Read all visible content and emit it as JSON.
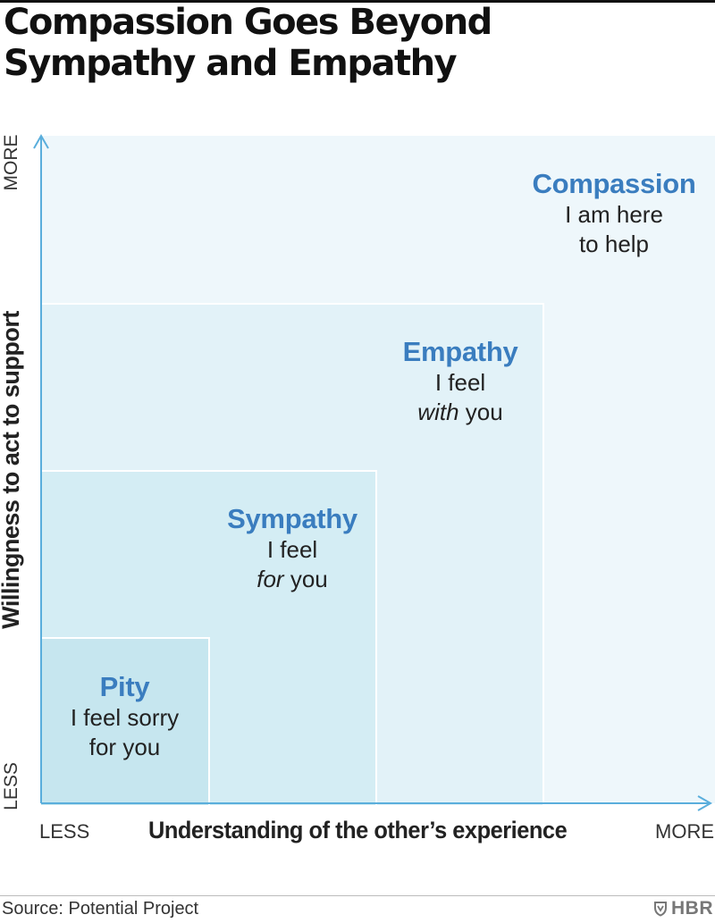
{
  "title": {
    "line1": "Compassion Goes Beyond",
    "line2": "Sympathy and Empathy"
  },
  "levels": [
    {
      "id": "pity",
      "name": "Pity",
      "desc_line1": "I feel sorry",
      "desc_line2_pre": "",
      "desc_line2_em": "",
      "desc_line2_post": "for you",
      "understanding": 1,
      "willingness": 1
    },
    {
      "id": "sympathy",
      "name": "Sympathy",
      "desc_line1": "I feel",
      "desc_line2_pre": "",
      "desc_line2_em": "for",
      "desc_line2_post": " you",
      "understanding": 2,
      "willingness": 2
    },
    {
      "id": "empathy",
      "name": "Empathy",
      "desc_line1": "I feel",
      "desc_line2_pre": "",
      "desc_line2_em": "with",
      "desc_line2_post": " you",
      "understanding": 3,
      "willingness": 3
    },
    {
      "id": "compassion",
      "name": "Compassion",
      "desc_line1": "I am here",
      "desc_line2_pre": "",
      "desc_line2_em": "",
      "desc_line2_post": "to help",
      "understanding": 4,
      "willingness": 4
    }
  ],
  "axes": {
    "x_label": "Understanding of the other’s experience",
    "x_low": "LESS",
    "x_high": "MORE",
    "y_label": "Willingness to act to support",
    "y_low": "LESS",
    "y_high": "MORE"
  },
  "colors": {
    "accent": "#3a7dbf",
    "axis": "#5aaedc",
    "compassion_fill": "#eef7fb",
    "empathy_fill": "#e2f2f8",
    "sympathy_fill": "#d4edf4",
    "pity_fill": "#c6e6ef"
  },
  "footer": {
    "source": "Source: Potential Project",
    "brand": "HBR",
    "brand_icon": "hbr-shield-icon"
  }
}
